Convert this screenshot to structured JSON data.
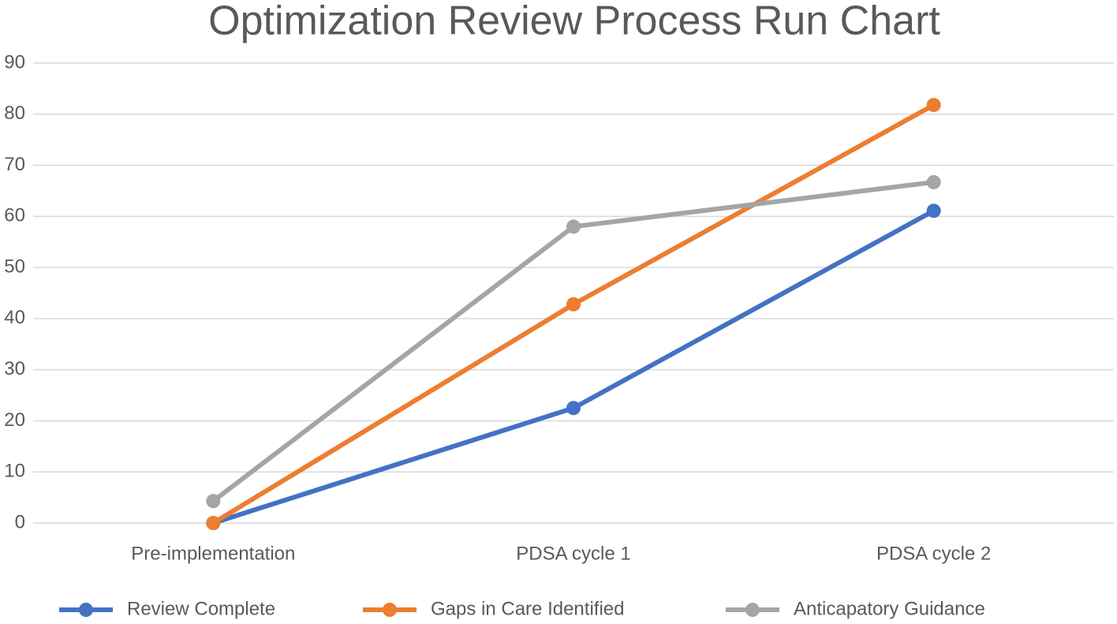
{
  "chart_data": {
    "type": "line",
    "title": "Optimization Review Process Run Chart",
    "categories": [
      "Pre-implementation",
      "PDSA cycle 1",
      "PDSA cycle 2"
    ],
    "series": [
      {
        "name": "Review Complete",
        "color": "#4472c4",
        "values": [
          0,
          22.5,
          61.1
        ]
      },
      {
        "name": "Gaps in Care Identified",
        "color": "#ed7d31",
        "values": [
          0,
          42.8,
          81.8
        ]
      },
      {
        "name": "Anticapatory Guidance",
        "color": "#a5a5a5",
        "values": [
          4.3,
          58.0,
          66.7
        ]
      }
    ],
    "ylim": [
      0,
      90
    ],
    "yticks": [
      0,
      10,
      20,
      30,
      40,
      50,
      60,
      70,
      80,
      90
    ],
    "grid": true,
    "legend": "bottom"
  }
}
